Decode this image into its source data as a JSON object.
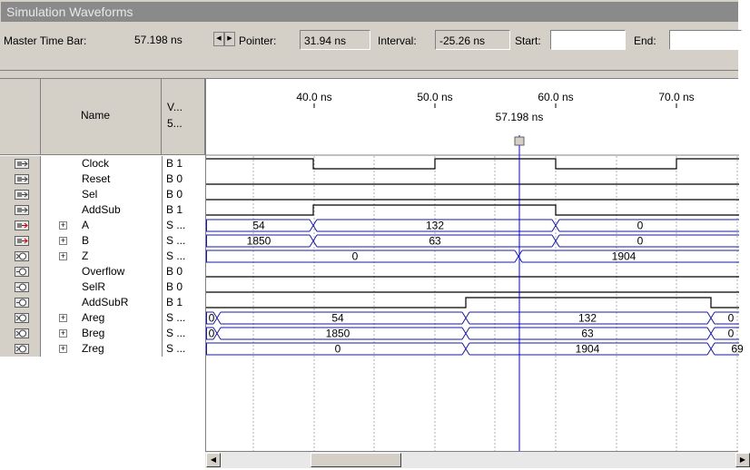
{
  "window": {
    "title": "Simulation Waveforms"
  },
  "toolbar": {
    "master_label": "Master Time Bar:",
    "master_value": "57.198 ns",
    "pointer_label": "Pointer:",
    "pointer_value": "31.94 ns",
    "interval_label": "Interval:",
    "interval_value": "-25.26 ns",
    "start_label": "Start:",
    "start_value": "",
    "end_label": "End:",
    "end_value": ""
  },
  "columns": {
    "name": "Name",
    "value_line1": "V...",
    "value_line2": "5..."
  },
  "timeline": {
    "ticks": [
      "40.0 ns",
      "50.0 ns",
      "60.0 ns",
      "70.0 ns"
    ],
    "cursor_label": "57.198 ns"
  },
  "signals": [
    {
      "name": "Clock",
      "value": "B 1",
      "icon": "input-pin-icon",
      "expand": false
    },
    {
      "name": "Reset",
      "value": "B 0",
      "icon": "input-pin-icon",
      "expand": false
    },
    {
      "name": "Sel",
      "value": "B 0",
      "icon": "input-pin-icon",
      "expand": false
    },
    {
      "name": "AddSub",
      "value": "B 1",
      "icon": "input-pin-icon",
      "expand": false
    },
    {
      "name": "A",
      "value": "S ...",
      "icon": "input-bus-icon",
      "expand": true
    },
    {
      "name": "B",
      "value": "S ...",
      "icon": "input-bus-icon",
      "expand": true
    },
    {
      "name": "Z",
      "value": "S ...",
      "icon": "output-bus-icon",
      "expand": true
    },
    {
      "name": "Overflow",
      "value": "B 0",
      "icon": "output-pin-icon",
      "expand": false
    },
    {
      "name": "SelR",
      "value": "B 0",
      "icon": "output-pin-icon",
      "expand": false
    },
    {
      "name": "AddSubR",
      "value": "B 1",
      "icon": "output-pin-icon",
      "expand": false
    },
    {
      "name": "Areg",
      "value": "S ...",
      "icon": "output-bus-icon",
      "expand": true
    },
    {
      "name": "Breg",
      "value": "S ...",
      "icon": "output-bus-icon",
      "expand": true
    },
    {
      "name": "Zreg",
      "value": "S ...",
      "icon": "output-bus-icon",
      "expand": true
    }
  ],
  "bus_values": {
    "A": [
      "54",
      "132",
      "0"
    ],
    "B": [
      "1850",
      "63",
      "0"
    ],
    "Z": [
      "0",
      "1904"
    ],
    "Areg": [
      "0",
      "54",
      "132",
      "0"
    ],
    "Breg": [
      "0",
      "1850",
      "63",
      "0"
    ],
    "Zreg": [
      "0",
      "1904",
      "69"
    ]
  },
  "colors": {
    "bus": "#1a1aa0",
    "cursor": "#0000ff",
    "grid": "#b0b0b0"
  }
}
